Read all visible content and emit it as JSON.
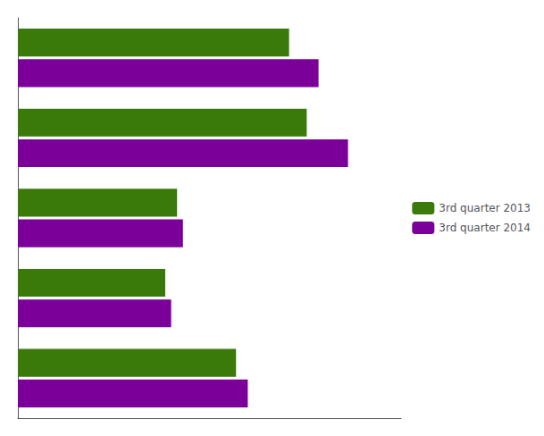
{
  "chart_data": {
    "type": "bar",
    "orientation": "horizontal",
    "categories": [
      null,
      null,
      null,
      null,
      null
    ],
    "series": [
      {
        "name": "3rd quarter 2013",
        "color": "#3a7a0a",
        "values": [
          46,
          49,
          27,
          25,
          37
        ]
      },
      {
        "name": "3rd quarter 2014",
        "color": "#7b0099",
        "values": [
          51,
          56,
          28,
          26,
          39
        ]
      }
    ],
    "xlim": [
      0,
      65
    ],
    "grid": false,
    "tick_labels": false,
    "legend": "right"
  }
}
